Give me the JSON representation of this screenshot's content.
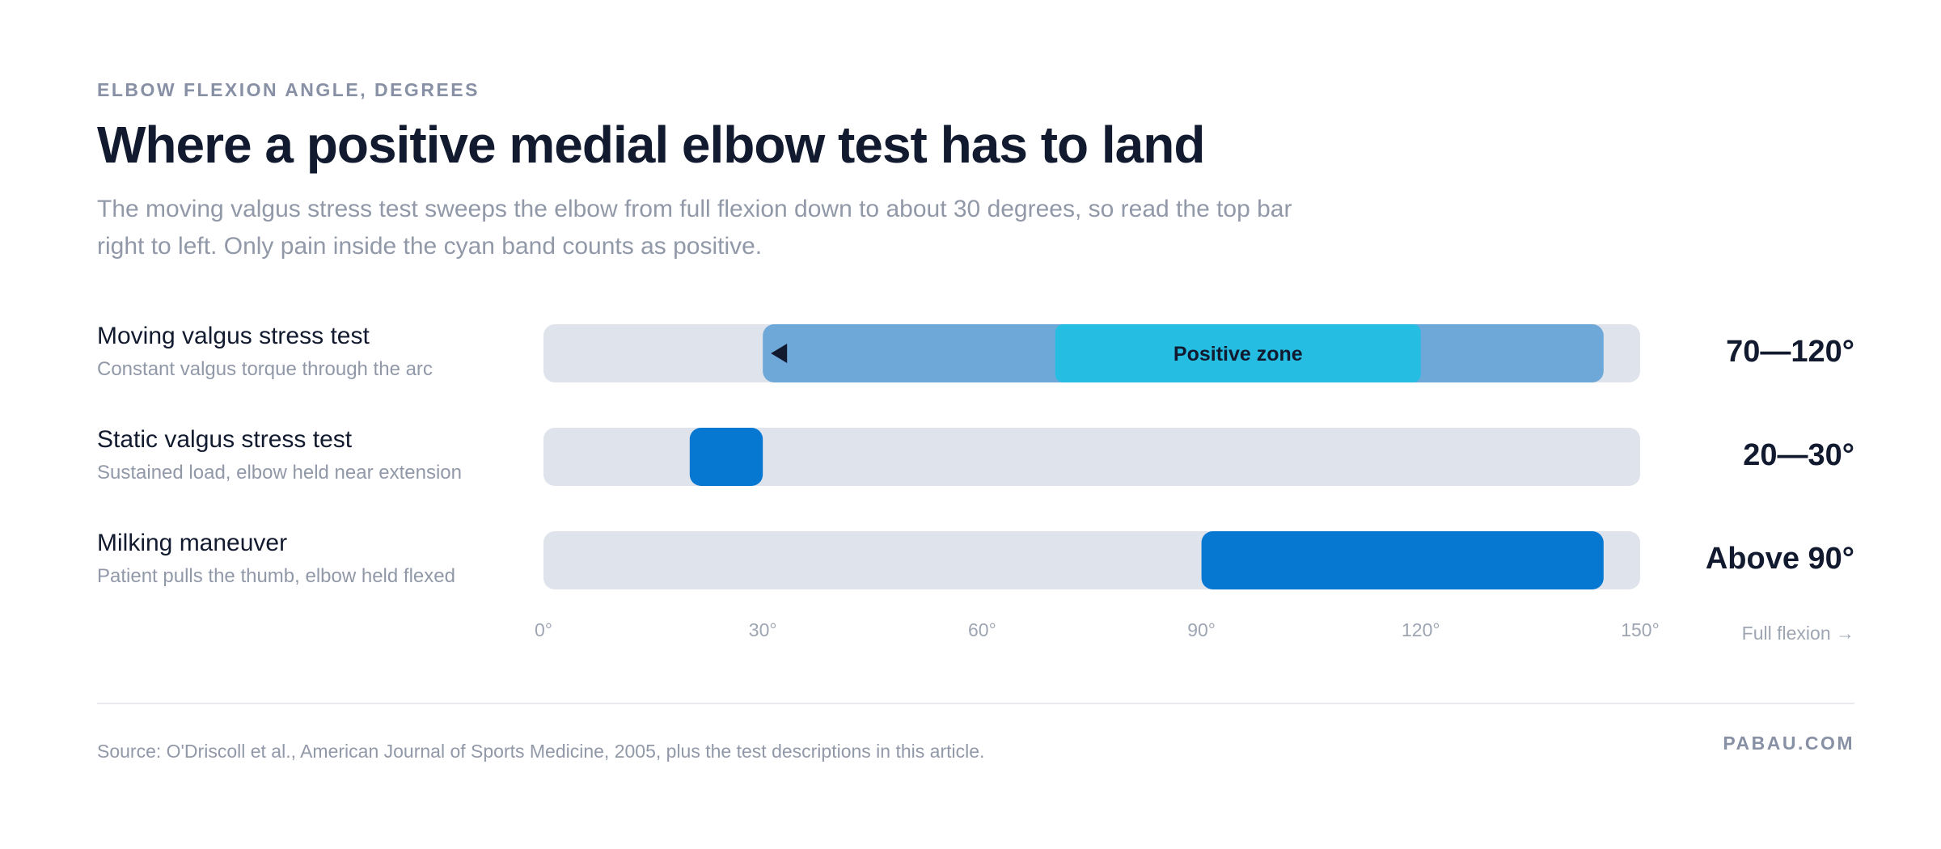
{
  "eyebrow": "ELBOW FLEXION ANGLE, DEGREES",
  "title": "Where a positive medial elbow test has to land",
  "subtitle": "The moving valgus stress test sweeps the elbow from full flexion down to about 30 degrees, so read the top bar right to left. Only pain inside the cyan band counts as positive.",
  "colors": {
    "track": "#dfe3ec",
    "sweep": "#6ea8d8",
    "positive_zone": "#25bde2",
    "range": "#0778d1",
    "text_dark": "#111a2e",
    "text_muted": "#9198a8"
  },
  "chart_data": {
    "type": "bar",
    "orientation": "horizontal",
    "value_kind": "range",
    "x_unit": "degrees",
    "xlim": [
      0,
      150
    ],
    "ticks": [
      0,
      30,
      60,
      90,
      120,
      150
    ],
    "tick_labels": [
      "0°",
      "30°",
      "60°",
      "90°",
      "120°",
      "150°"
    ],
    "axis_note": "Full flexion →",
    "rows": [
      {
        "name": "Moving valgus stress test",
        "description": "Constant valgus torque through the arc",
        "value_label": "70—120°",
        "sweep": {
          "from": 145,
          "to": 30,
          "direction": "right-to-left",
          "arrow_icon": "left-triangle-icon"
        },
        "range": [
          70,
          120
        ],
        "range_label": "Positive zone"
      },
      {
        "name": "Static valgus stress test",
        "description": "Sustained load, elbow held near extension",
        "value_label": "20—30°",
        "range": [
          20,
          30
        ]
      },
      {
        "name": "Milking maneuver",
        "description": "Patient pulls the thumb, elbow held flexed",
        "value_label": "Above 90°",
        "range": [
          90,
          145
        ]
      }
    ]
  },
  "footer": {
    "source": "Source: O'Driscoll et al., American Journal of Sports Medicine, 2005, plus the test descriptions in this article.",
    "brand": "PABAU.COM"
  }
}
